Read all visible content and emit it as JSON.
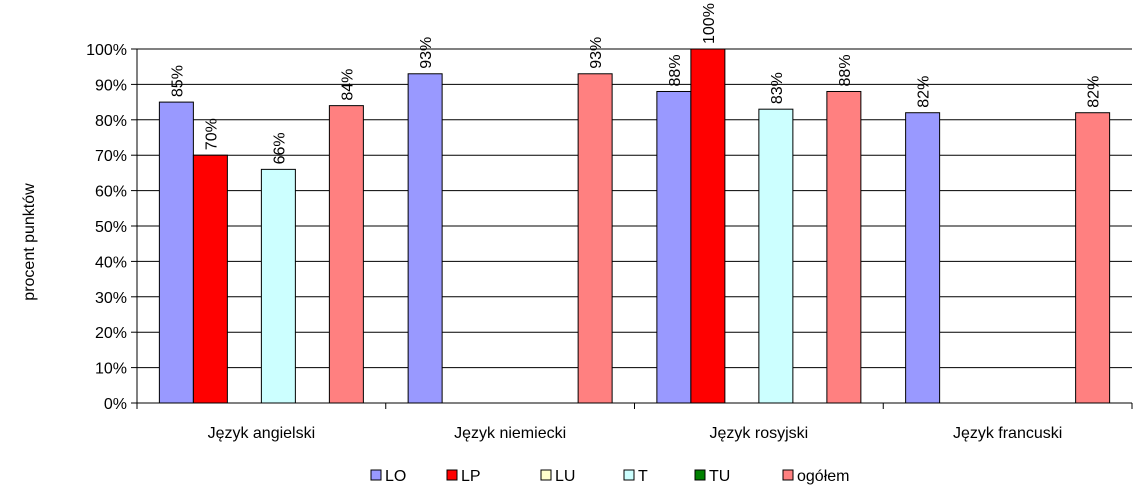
{
  "chart_data": {
    "type": "bar",
    "title": "",
    "xlabel": "",
    "ylabel": "procent punktów",
    "ylim": [
      0,
      100
    ],
    "y_tick_step": 10,
    "y_tick_format": "{v}%",
    "grid": true,
    "legend_position": "bottom",
    "categories": [
      "Język angielski",
      "Język niemiecki",
      "Język rosyjski",
      "Język francuski"
    ],
    "series": [
      {
        "name": "LO",
        "color": "#9999ff",
        "values": [
          85,
          93,
          88,
          82
        ]
      },
      {
        "name": "LP",
        "color": "#ff0000",
        "values": [
          70,
          null,
          100,
          null
        ]
      },
      {
        "name": "LU",
        "color": "#ffffcc",
        "values": [
          null,
          null,
          null,
          null
        ]
      },
      {
        "name": "T",
        "color": "#ccffff",
        "values": [
          66,
          null,
          83,
          null
        ]
      },
      {
        "name": "TU",
        "color": "#008000",
        "values": [
          null,
          null,
          null,
          null
        ]
      },
      {
        "name": "ogółem",
        "color": "#ff8080",
        "values": [
          84,
          93,
          88,
          82
        ]
      }
    ],
    "data_labels": [
      [
        "85%",
        "93%",
        "88%",
        "82%"
      ],
      [
        "70%",
        null,
        "100%",
        null
      ],
      [
        null,
        null,
        null,
        null
      ],
      [
        "66%",
        null,
        "83%",
        null
      ],
      [
        null,
        null,
        null,
        null
      ],
      [
        "84%",
        "93%",
        "88%",
        "82%"
      ]
    ]
  }
}
